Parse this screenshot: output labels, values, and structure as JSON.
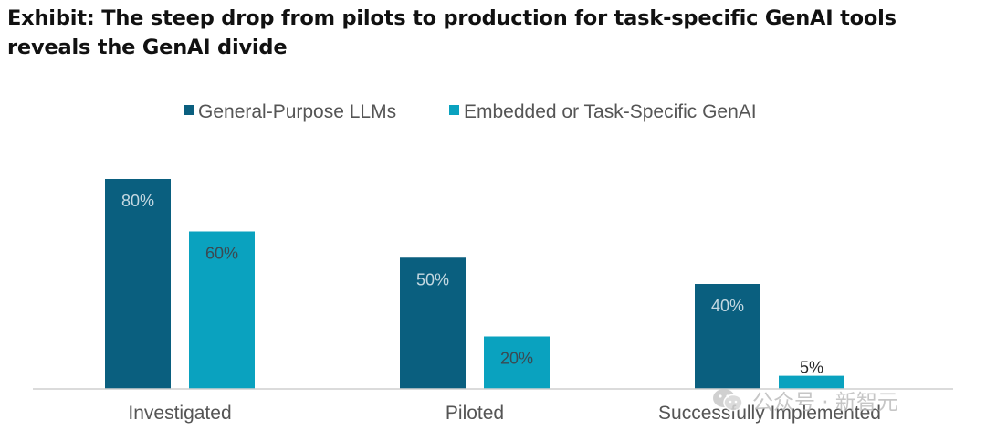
{
  "title": "Exhibit: The steep drop from pilots to production for task-specific GenAI tools reveals the GenAI divide",
  "watermark": {
    "text": "公众号 · 新智元",
    "icon": "wechat-icon"
  },
  "chart_data": {
    "type": "bar",
    "categories": [
      "Investigated",
      "Piloted",
      "Successfully Implemented"
    ],
    "series": [
      {
        "name": "General-Purpose LLMs",
        "values": [
          80,
          50,
          40
        ],
        "color": "#0a5f7f",
        "label_color": "#c4d8e1"
      },
      {
        "name": "Embedded or Task-Specific GenAI",
        "values": [
          60,
          20,
          5
        ],
        "color": "#0aa2bf",
        "label_color": "#3a4a52"
      }
    ],
    "value_labels": [
      [
        "80%",
        "50%",
        "40%"
      ],
      [
        "60%",
        "20%",
        "5%"
      ]
    ],
    "ylim": [
      0,
      100
    ],
    "grid": false,
    "legend": "top-center"
  }
}
